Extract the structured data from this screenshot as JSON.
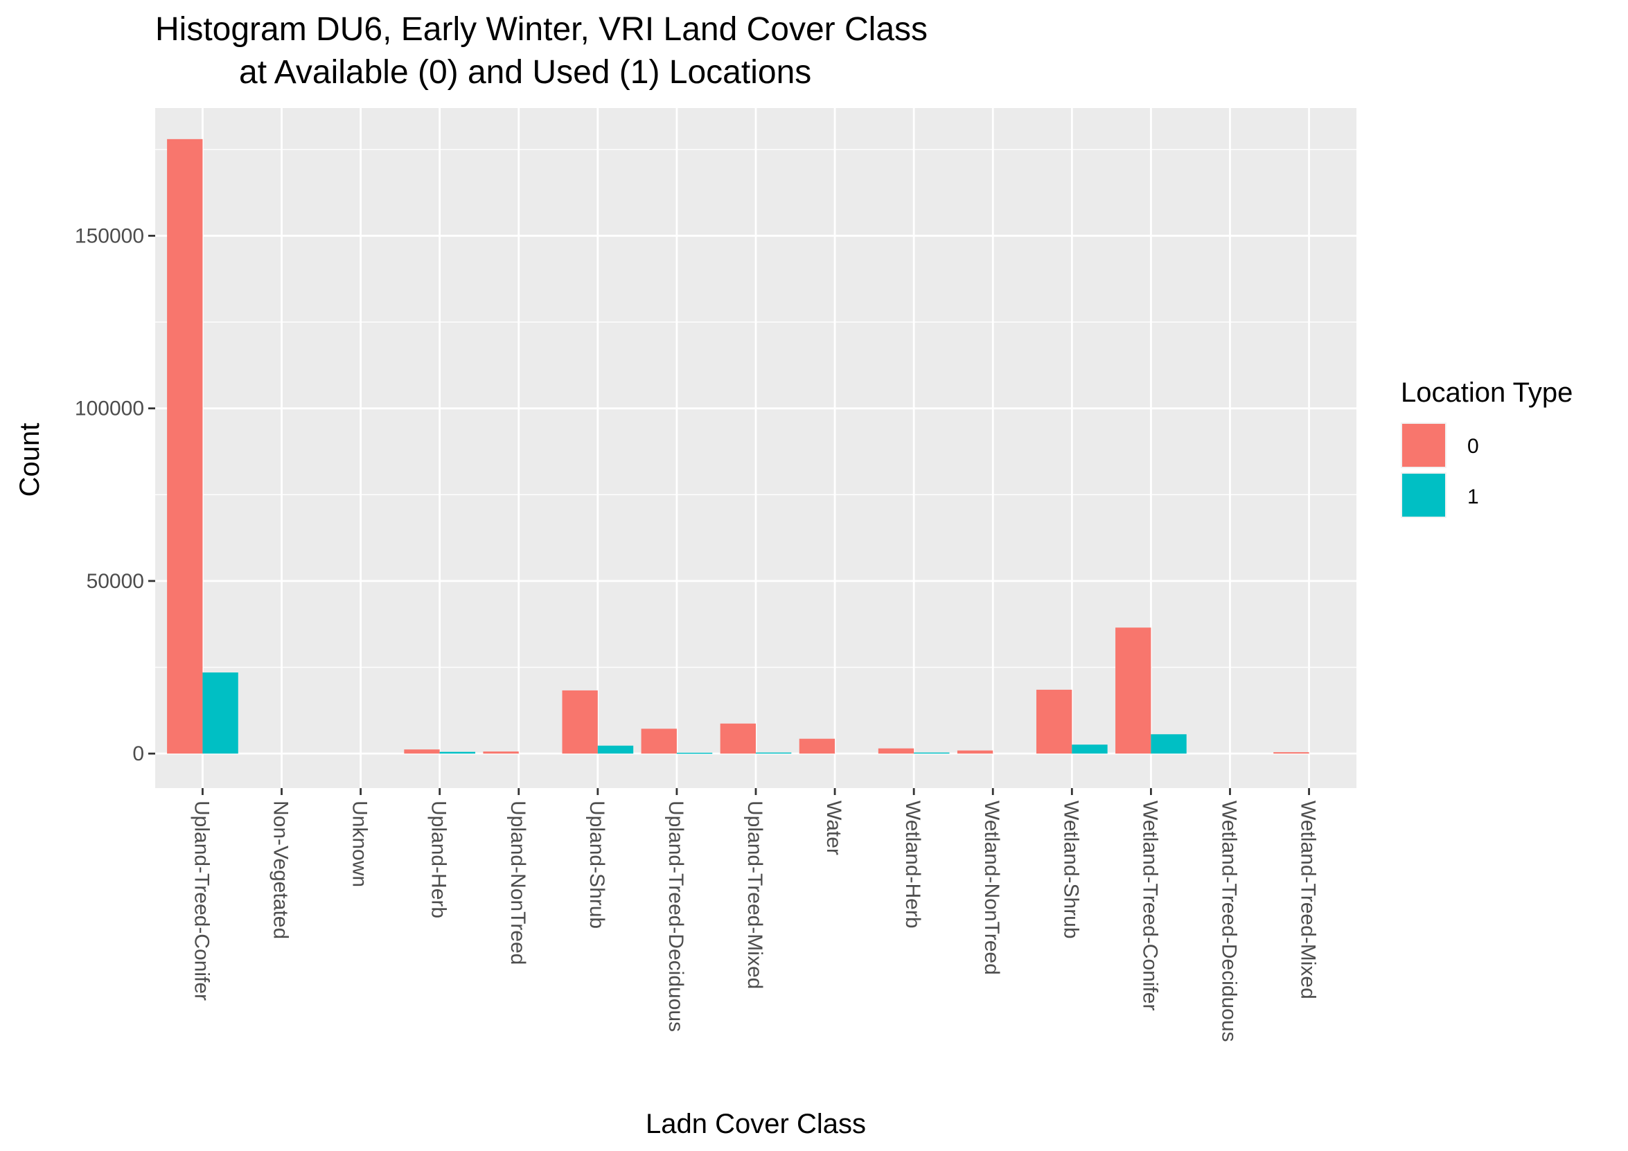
{
  "chart_data": {
    "type": "bar",
    "title_line1": "Histogram DU6, Early Winter, VRI Land Cover Class",
    "title_line2": "at Available (0) and Used (1) Locations",
    "xlabel": "Ladn Cover Class",
    "ylabel": "Count",
    "ylim": [
      -10000,
      187000
    ],
    "yticks": [
      0,
      50000,
      100000,
      150000
    ],
    "ytick_labels": [
      "0",
      "50000",
      "100000",
      "150000"
    ],
    "grid": true,
    "legend": {
      "title": "Location Type",
      "position": "right"
    },
    "categories": [
      "Upland-Treed-Conifer",
      "Non-Vegetated",
      "Unknown",
      "Upland-Herb",
      "Upland-NonTreed",
      "Upland-Shrub",
      "Upland-Treed-Deciduous",
      "Upland-Treed-Mixed",
      "Water",
      "Wetland-Herb",
      "Wetland-NonTreed",
      "Wetland-Shrub",
      "Wetland-Treed-Conifer",
      "Wetland-Treed-Deciduous",
      "Wetland-Treed-Mixed"
    ],
    "series": [
      {
        "name": "0",
        "color": "#F8766D",
        "values": [
          178000,
          0,
          0,
          1200,
          600,
          18300,
          7200,
          8700,
          4300,
          1500,
          900,
          18500,
          36500,
          0,
          400
        ]
      },
      {
        "name": "1",
        "color": "#00BFC4",
        "values": [
          23500,
          0,
          0,
          500,
          0,
          2300,
          250,
          300,
          0,
          300,
          0,
          2600,
          5600,
          0,
          0
        ]
      }
    ]
  }
}
